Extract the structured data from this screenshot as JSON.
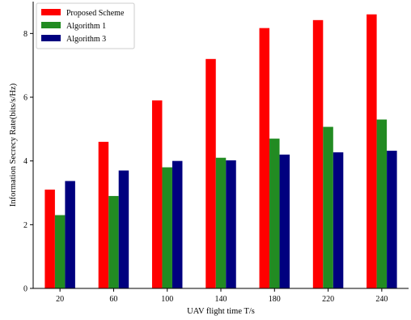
{
  "chart_data": {
    "type": "bar",
    "title": "",
    "xlabel": "UAV flight time T/s",
    "ylabel": "Information Secrecy Rate(bits/s/Hz)",
    "categories": [
      "20",
      "60",
      "100",
      "140",
      "180",
      "220",
      "240"
    ],
    "ylim": [
      0,
      9
    ],
    "yticks": [
      "0",
      "2",
      "4",
      "6",
      "8"
    ],
    "grid": false,
    "legend_position": "top-left",
    "series": [
      {
        "name": "Proposed Scheme",
        "color": "#ff0000",
        "values": [
          3.1,
          4.6,
          5.9,
          7.2,
          8.17,
          8.42,
          8.6
        ]
      },
      {
        "name": "Algorithm 1",
        "color": "#228b22",
        "values": [
          2.3,
          2.9,
          3.8,
          4.1,
          4.7,
          5.07,
          5.3
        ]
      },
      {
        "name": "Algorithm 3",
        "color": "#00007f",
        "values": [
          3.37,
          3.7,
          4.0,
          4.02,
          4.2,
          4.27,
          4.32
        ]
      }
    ]
  }
}
